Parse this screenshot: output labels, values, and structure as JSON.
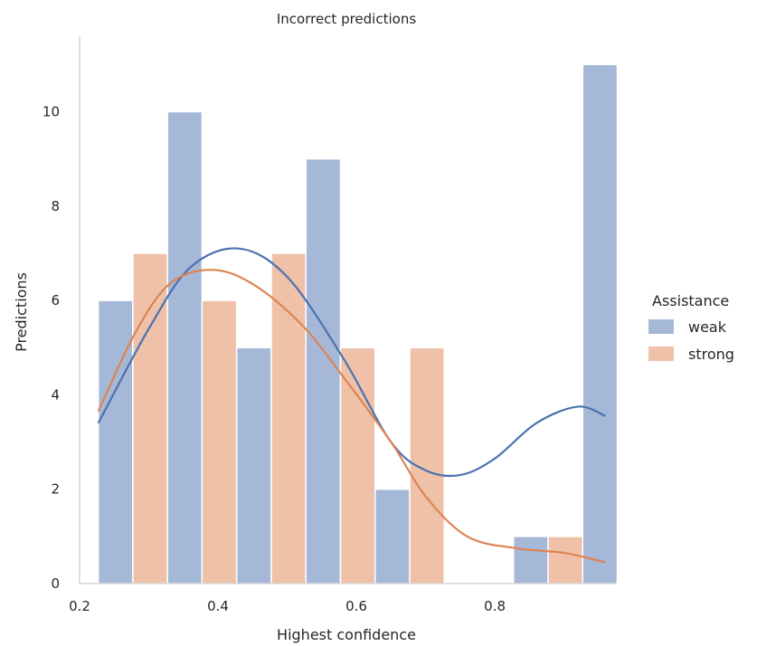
{
  "chart_data": {
    "type": "bar",
    "title": "Incorrect predictions",
    "xlabel": "Highest confidence",
    "ylabel": "Predictions",
    "xlim": [
      0.2,
      0.975
    ],
    "ylim": [
      0,
      11.6
    ],
    "xticks": [
      "0.2",
      "0.4",
      "0.6",
      "0.8"
    ],
    "yticks": [
      "0",
      "2",
      "4",
      "6",
      "8",
      "10"
    ],
    "grid": false,
    "legend": {
      "title": "Assistance",
      "placement": "right"
    },
    "bin_edges": [
      0.227,
      0.277,
      0.327,
      0.377,
      0.427,
      0.477,
      0.527,
      0.577,
      0.627,
      0.677,
      0.727,
      0.777,
      0.827,
      0.877,
      0.927,
      0.977
    ],
    "series": [
      {
        "name": "weak",
        "color": "#4c72b0",
        "values": [
          6,
          10,
          5,
          9,
          2,
          0,
          1,
          11
        ],
        "kde": [
          [
            0.227,
            3.4
          ],
          [
            0.3,
            5.4
          ],
          [
            0.36,
            6.7
          ],
          [
            0.43,
            7.1
          ],
          [
            0.5,
            6.5
          ],
          [
            0.58,
            4.8
          ],
          [
            0.65,
            3.0
          ],
          [
            0.7,
            2.4
          ],
          [
            0.75,
            2.3
          ],
          [
            0.8,
            2.65
          ],
          [
            0.86,
            3.4
          ],
          [
            0.92,
            3.75
          ],
          [
            0.96,
            3.55
          ]
        ]
      },
      {
        "name": "strong",
        "color": "#dd8452",
        "values": [
          7,
          6,
          7,
          5,
          5,
          0,
          1,
          1
        ],
        "kde": [
          [
            0.227,
            3.65
          ],
          [
            0.28,
            5.3
          ],
          [
            0.33,
            6.35
          ],
          [
            0.39,
            6.65
          ],
          [
            0.45,
            6.35
          ],
          [
            0.52,
            5.5
          ],
          [
            0.58,
            4.4
          ],
          [
            0.65,
            3.0
          ],
          [
            0.7,
            1.85
          ],
          [
            0.76,
            1.0
          ],
          [
            0.83,
            0.75
          ],
          [
            0.9,
            0.65
          ],
          [
            0.96,
            0.45
          ]
        ]
      }
    ]
  }
}
